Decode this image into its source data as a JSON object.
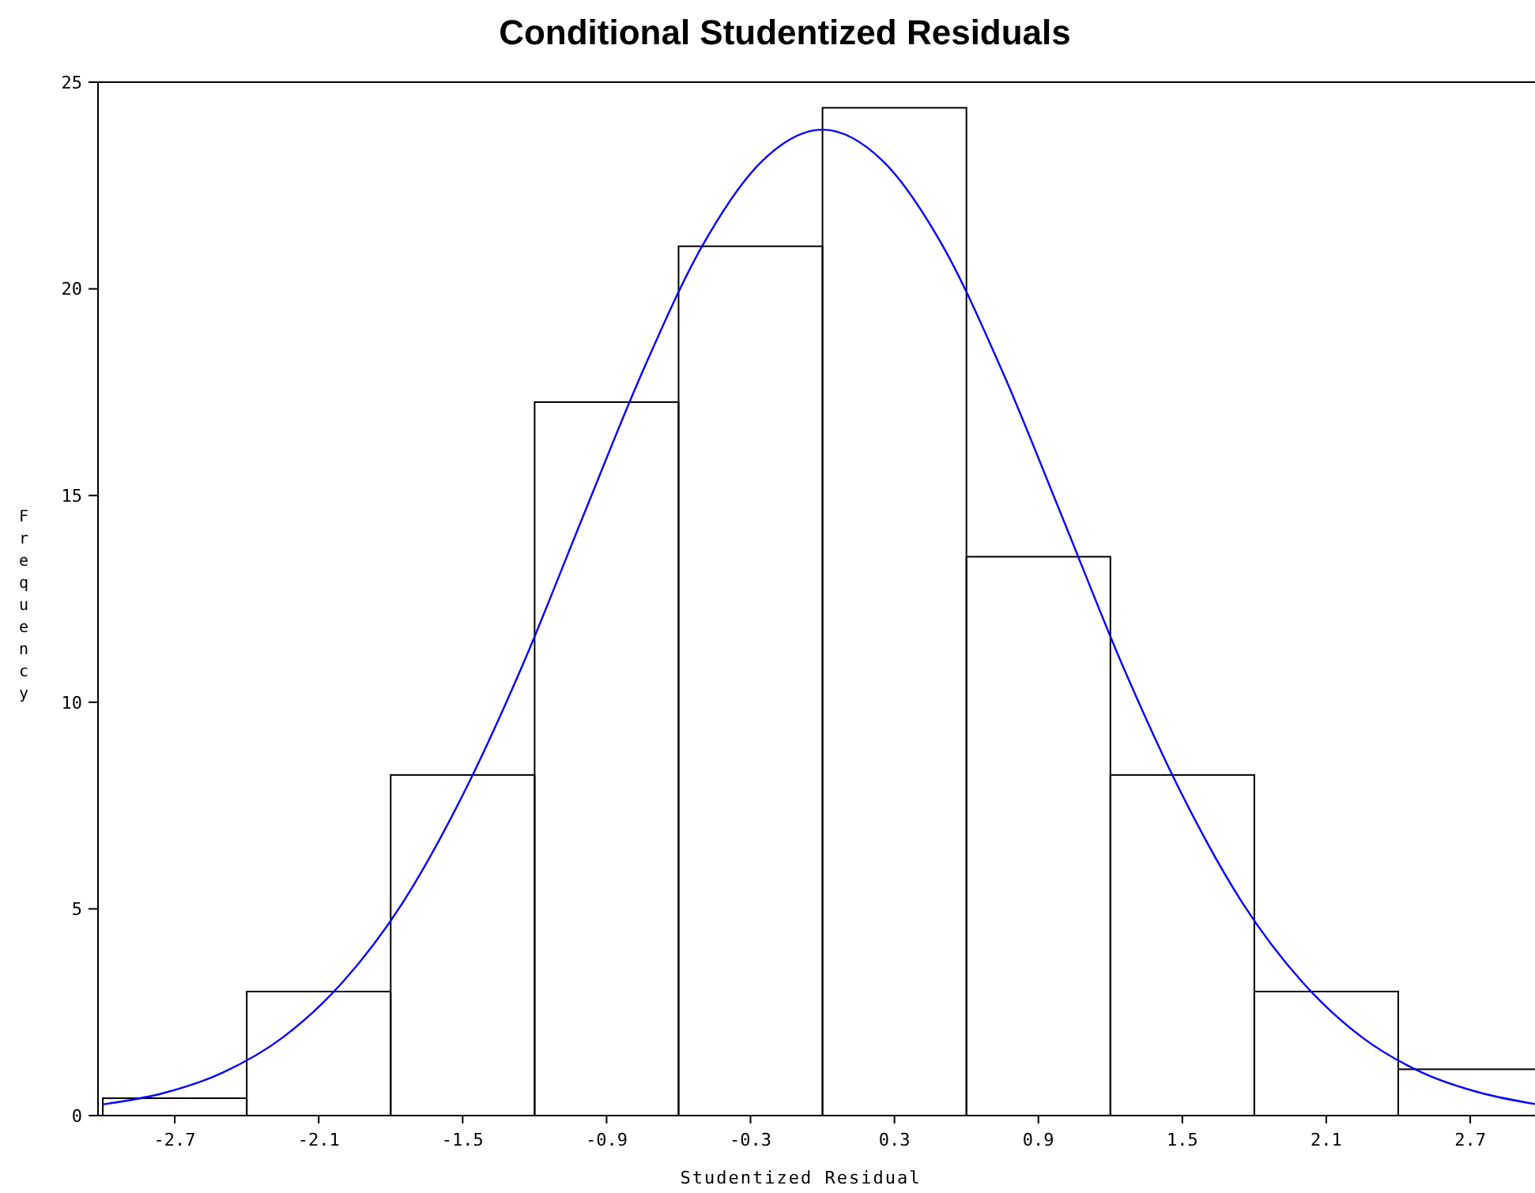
{
  "chart_data": {
    "type": "histogram",
    "title": "Conditional Studentized Residuals",
    "xlabel": "Studentized Residual",
    "ylabel": "Frequency",
    "bins": [
      -3.0,
      -2.4,
      -1.8,
      -1.2,
      -0.6,
      0.0,
      0.6,
      1.2,
      1.8,
      2.4,
      3.0
    ],
    "values": [
      0.42,
      3.0,
      8.24,
      17.26,
      21.03,
      24.38,
      13.52,
      8.24,
      3.0,
      1.12
    ],
    "color": "#000000",
    "series": [
      {
        "type": "line",
        "color": "#0000ff",
        "x": [
          -3,
          -2.75,
          -2.5,
          -2.25,
          -2,
          -1.75,
          -1.5,
          -1.25,
          -1,
          -0.75,
          -0.5,
          -0.25,
          0,
          0.25,
          0.5,
          0.75,
          1,
          1.25,
          1.5,
          1.75,
          2,
          2.25,
          2.5,
          2.75,
          2.97
        ],
        "values": [
          0.27,
          0.54,
          1.04,
          1.89,
          3.23,
          5.15,
          7.75,
          10.9,
          14.47,
          18.0,
          21.05,
          23.1,
          23.85,
          23.1,
          21.05,
          18.0,
          14.47,
          10.9,
          7.75,
          5.15,
          3.23,
          1.89,
          1.04,
          0.54,
          0.28
        ]
      }
    ],
    "xlim": [
      -3.02,
      2.97
    ],
    "ylim": [
      0,
      25
    ],
    "xticks": [
      -2.7,
      -2.1,
      -1.5,
      -0.9,
      -0.3,
      0.3,
      0.9,
      1.5,
      2.1,
      2.7
    ],
    "yticks": [
      0,
      5,
      10,
      15,
      20,
      25
    ],
    "grid": false
  }
}
